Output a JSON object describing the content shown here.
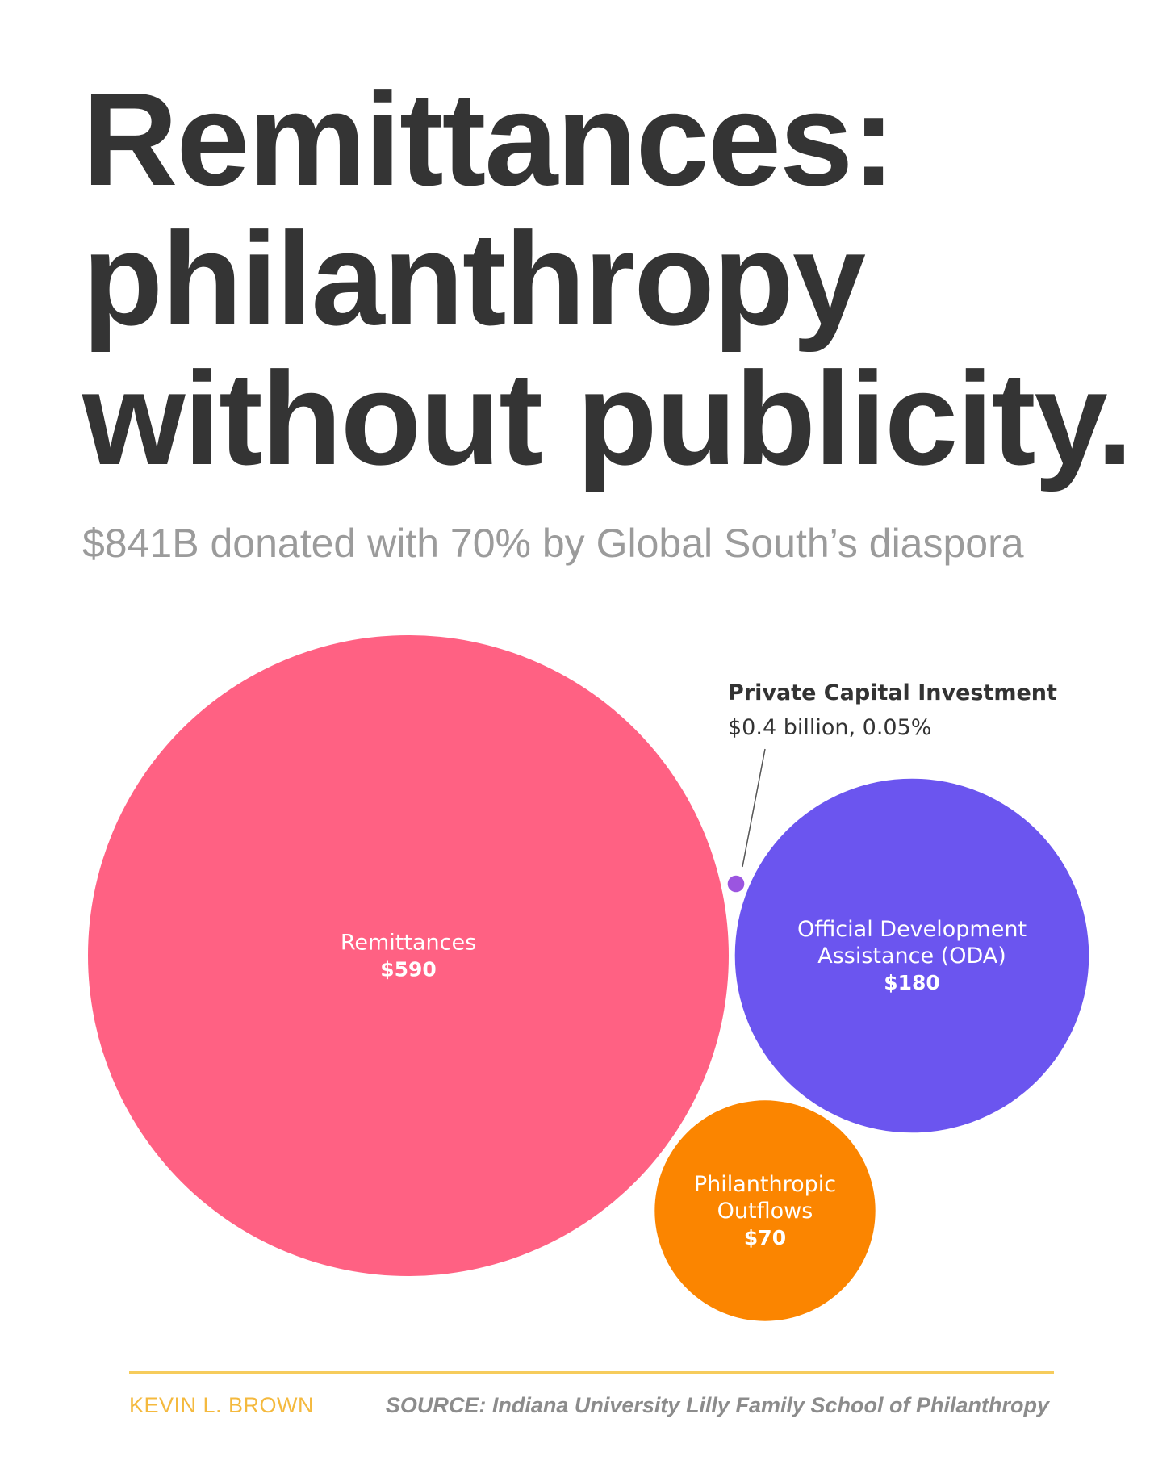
{
  "header": {
    "title_lines": [
      "Remittances:",
      "philanthropy",
      "without publicity."
    ],
    "subtitle": "$841B donated with 70% by Global South’s diaspora"
  },
  "chart_data": {
    "type": "bubble",
    "value_units": "billions USD",
    "items": [
      {
        "key": "remittances",
        "label_lines": [
          "Remittances"
        ],
        "value_label": "$590",
        "value": 590,
        "color": "#ff6183"
      },
      {
        "key": "oda",
        "label_lines": [
          "Official Development",
          "Assistance (ODA)"
        ],
        "value_label": "$180",
        "value": 180,
        "color": "#6b55ef"
      },
      {
        "key": "philanthropic",
        "label_lines": [
          "Philanthropic",
          "Outflows"
        ],
        "value_label": "$70",
        "value": 70,
        "color": "#fb8500"
      },
      {
        "key": "private",
        "label_lines": [],
        "value_label": "",
        "value": 0.4,
        "color": "#9b55e0"
      }
    ],
    "annotation": {
      "title": "Private Capital Investment",
      "detail": "$0.4 billion, 0.05%"
    }
  },
  "footer": {
    "author": "KEVIN L. BROWN",
    "source": "SOURCE: Indiana University Lilly Family School of Philanthropy",
    "accent_color": "#f6cc5c"
  }
}
